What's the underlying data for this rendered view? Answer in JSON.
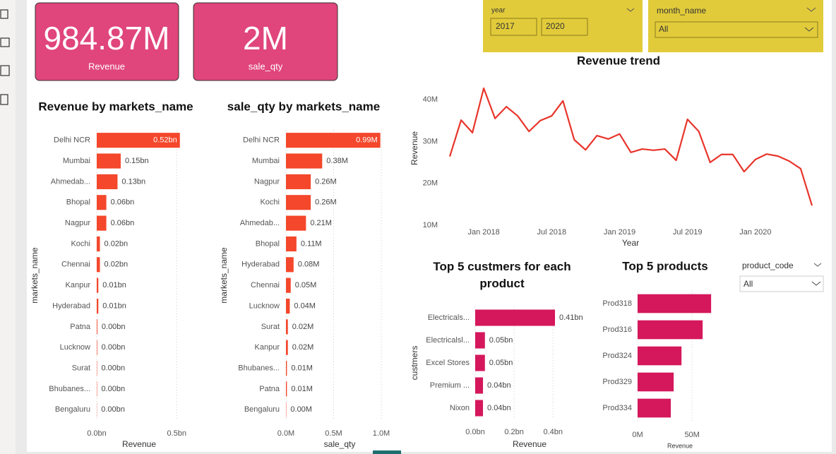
{
  "cards": [
    {
      "value": "984.87M",
      "label": "Revenue"
    },
    {
      "value": "2M",
      "label": "sale_qty"
    }
  ],
  "slicers": {
    "year": {
      "label": "year",
      "from": "2017",
      "to": "2020"
    },
    "month_name": {
      "label": "month_name",
      "value": "All"
    },
    "product_code": {
      "label": "product_code",
      "value": "All"
    }
  },
  "chart_data": [
    {
      "type": "bar",
      "orientation": "horizontal",
      "title": "Revenue by markets_name",
      "x_label": "Revenue",
      "y_label": "markets_name",
      "categories": [
        "Delhi NCR",
        "Mumbai",
        "Ahmedab...",
        "Bhopal",
        "Nagpur",
        "Kochi",
        "Chennai",
        "Kanpur",
        "Hyderabad",
        "Patna",
        "Lucknow",
        "Surat",
        "Bhubanes...",
        "Bengaluru"
      ],
      "values": [
        0.52,
        0.15,
        0.13,
        0.06,
        0.06,
        0.02,
        0.02,
        0.01,
        0.01,
        0.004,
        0.003,
        0.002,
        0.002,
        0.001
      ],
      "value_labels": [
        "0.52bn",
        "0.15bn",
        "0.13bn",
        "0.06bn",
        "0.06bn",
        "0.02bn",
        "0.02bn",
        "0.01bn",
        "0.01bn",
        "0.00bn",
        "0.00bn",
        "0.00bn",
        "0.00bn",
        "0.00bn"
      ],
      "color": "#f4472b",
      "xlim": [
        0,
        0.53
      ],
      "xticks": [
        {
          "value": 0,
          "label": "0.0bn"
        },
        {
          "value": 0.5,
          "label": "0.5bn"
        }
      ],
      "grid": true
    },
    {
      "type": "bar",
      "orientation": "horizontal",
      "title": "sale_qty by markets_name",
      "x_label": "sale_qty",
      "y_label": "markets_name",
      "categories": [
        "Delhi NCR",
        "Mumbai",
        "Nagpur",
        "Kochi",
        "Ahmedab...",
        "Bhopal",
        "Hyderabad",
        "Chennai",
        "Lucknow",
        "Surat",
        "Kanpur",
        "Bhubanes...",
        "Patna",
        "Bengaluru"
      ],
      "values": [
        0.99,
        0.38,
        0.26,
        0.26,
        0.21,
        0.11,
        0.08,
        0.05,
        0.04,
        0.02,
        0.02,
        0.01,
        0.01,
        0.003
      ],
      "value_labels": [
        "0.99M",
        "0.38M",
        "0.26M",
        "0.26M",
        "0.21M",
        "0.11M",
        "0.08M",
        "0.05M",
        "0.04M",
        "0.02M",
        "0.02M",
        "0.01M",
        "0.01M",
        "0.00M"
      ],
      "color": "#f4472b",
      "xlim": [
        0,
        1.0
      ],
      "xticks": [
        {
          "value": 0,
          "label": "0.0M"
        },
        {
          "value": 0.5,
          "label": "0.5M"
        },
        {
          "value": 1.0,
          "label": "1.0M"
        }
      ],
      "grid": true
    },
    {
      "type": "line",
      "title": "Revenue trend",
      "x_label": "Year",
      "y_label": "Revenue",
      "x": [
        "2017-10",
        "2017-11",
        "2017-12",
        "2018-01",
        "2018-02",
        "2018-03",
        "2018-04",
        "2018-05",
        "2018-06",
        "2018-07",
        "2018-08",
        "2018-09",
        "2018-10",
        "2018-11",
        "2018-12",
        "2019-01",
        "2019-02",
        "2019-03",
        "2019-04",
        "2019-05",
        "2019-06",
        "2019-07",
        "2019-08",
        "2019-09",
        "2019-10",
        "2019-11",
        "2019-12",
        "2020-01",
        "2020-02",
        "2020-03",
        "2020-04",
        "2020-05",
        "2020-06"
      ],
      "values": [
        26.4,
        35.1,
        32.1,
        42.7,
        35.5,
        38.3,
        36.1,
        32.4,
        35.0,
        36.1,
        39.7,
        30.4,
        28.0,
        31.4,
        30.6,
        31.8,
        27.4,
        28.2,
        27.9,
        28.2,
        25.5,
        35.3,
        32.4,
        25.0,
        26.9,
        26.9,
        22.8,
        25.7,
        27.0,
        26.5,
        25.3,
        23.5,
        14.7
      ],
      "color": "#e8352b",
      "ylim": [
        9.8,
        43.5
      ],
      "yticks": [
        {
          "value": 10,
          "label": "10M"
        },
        {
          "value": 20,
          "label": "20M"
        },
        {
          "value": 30,
          "label": "30M"
        },
        {
          "value": 40,
          "label": "40M"
        }
      ],
      "xticks": [
        {
          "value": "2018-01",
          "label": "Jan 2018"
        },
        {
          "value": "2018-07",
          "label": "Jul 2018"
        },
        {
          "value": "2019-01",
          "label": "Jan 2019"
        },
        {
          "value": "2019-07",
          "label": "Jul 2019"
        },
        {
          "value": "2020-01",
          "label": "Jan 2020"
        }
      ],
      "grid": false
    },
    {
      "type": "bar",
      "orientation": "horizontal",
      "title": "Top 5 custmers for each product",
      "x_label": "Revenue",
      "y_label": "custmers",
      "categories": [
        "Electricals...",
        "Electricalsl...",
        "Excel Stores",
        "Premium ...",
        "Nixon"
      ],
      "values": [
        0.41,
        0.05,
        0.05,
        0.04,
        0.04
      ],
      "value_labels": [
        "0.41bn",
        "0.05bn",
        "0.05bn",
        "0.04bn",
        "0.04bn"
      ],
      "color": "#d5175b",
      "xlim": [
        0,
        0.41
      ],
      "xticks": [
        {
          "value": 0,
          "label": "0.0bn"
        },
        {
          "value": 0.2,
          "label": "0.2bn"
        },
        {
          "value": 0.4,
          "label": "0.4bn"
        }
      ],
      "grid": true
    },
    {
      "type": "bar",
      "orientation": "horizontal",
      "title": "Top 5 products",
      "x_label": "Revenue",
      "categories": [
        "Prod318",
        "Prod316",
        "Prod324",
        "Prod329",
        "Prod334"
      ],
      "values": [
        67.5,
        59.7,
        40.3,
        33.1,
        30.5
      ],
      "color": "#d5175b",
      "xlim": [
        0,
        70
      ],
      "xticks": [
        {
          "value": 0,
          "label": "0M"
        },
        {
          "value": 50,
          "label": "50M"
        }
      ],
      "grid": true
    }
  ]
}
